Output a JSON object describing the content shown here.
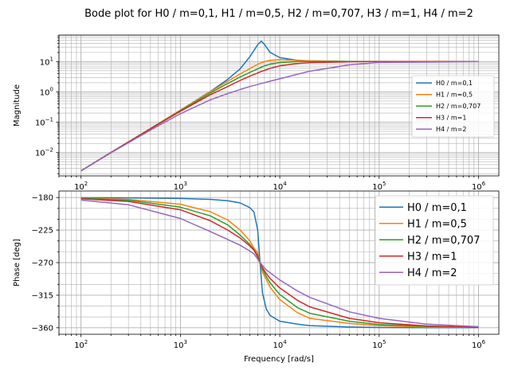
{
  "title": "Bode plot for H0 / m=0,1, H1 / m=0,5, H2 / m=0,707, H3 / m=1, H4 / m=2",
  "colors": {
    "series": [
      "#1f77b4",
      "#ff7f0e",
      "#2ca02c",
      "#d62728",
      "#9467bd"
    ],
    "grid": "#b0b0b0"
  },
  "chart_data": [
    {
      "type": "line",
      "title": "",
      "xlabel": "",
      "ylabel": "Magnitude",
      "xscale": "log",
      "yscale": "log",
      "xlim": [
        60,
        1600000
      ],
      "ylim": [
        0.0017,
        75
      ],
      "grid": "on (major and minor)",
      "legend_position": "center-right",
      "y_ticks": [
        {
          "value": 0.01,
          "base": "10",
          "exp": "−2"
        },
        {
          "value": 0.1,
          "base": "10",
          "exp": "−1"
        },
        {
          "value": 1,
          "base": "10",
          "exp": "0"
        },
        {
          "value": 10,
          "base": "10",
          "exp": "1"
        }
      ],
      "x_ticks": [
        {
          "value": 100,
          "base": "10",
          "exp": "2"
        },
        {
          "value": 1000,
          "base": "10",
          "exp": "3"
        },
        {
          "value": 10000,
          "base": "10",
          "exp": "4"
        },
        {
          "value": 100000,
          "base": "10",
          "exp": "5"
        },
        {
          "value": 1000000,
          "base": "10",
          "exp": "6"
        }
      ],
      "x": [
        100,
        200,
        500,
        1000,
        2000,
        3000,
        4000,
        5000,
        6000,
        6500,
        7000,
        8000,
        10000,
        15000,
        20000,
        50000,
        100000,
        1000000
      ],
      "series": [
        {
          "name": "H0 / m=0,1",
          "values": [
            0.0025,
            0.01,
            0.062,
            0.25,
            1.03,
            2.6,
            5.8,
            14.5,
            36,
            47,
            37,
            20,
            13.5,
            11,
            10.5,
            10.1,
            10,
            10
          ]
        },
        {
          "name": "H1 / m=0,5",
          "values": [
            0.0025,
            0.01,
            0.062,
            0.25,
            1.0,
            2.25,
            3.9,
            5.9,
            8.1,
            9.1,
            9.9,
            10.9,
            11.5,
            11.0,
            10.6,
            10.1,
            10,
            10
          ]
        },
        {
          "name": "H2 / m=0,707",
          "values": [
            0.0025,
            0.01,
            0.061,
            0.24,
            0.91,
            1.9,
            3.1,
            4.4,
            5.8,
            6.5,
            7.2,
            8.2,
            9.3,
            10.0,
            10.1,
            10.0,
            10,
            10
          ]
        },
        {
          "name": "H3 / m=1",
          "values": [
            0.0025,
            0.01,
            0.06,
            0.23,
            0.8,
            1.5,
            2.4,
            3.3,
            4.2,
            4.7,
            5.1,
            6.0,
            7.2,
            8.6,
            9.2,
            9.9,
            10,
            10
          ]
        },
        {
          "name": "H4 / m=2",
          "values": [
            0.0025,
            0.0098,
            0.055,
            0.19,
            0.55,
            0.88,
            1.2,
            1.5,
            1.75,
            1.9,
            2.0,
            2.25,
            2.7,
            3.8,
            4.8,
            7.8,
            9.4,
            10
          ]
        }
      ]
    },
    {
      "type": "line",
      "title": "",
      "xlabel": "Frequency [rad/s]",
      "ylabel": "Phase [deg]",
      "xscale": "log",
      "yscale": "linear",
      "xlim": [
        60,
        1600000
      ],
      "ylim": [
        -369,
        -171
      ],
      "grid": "on (major and minor)",
      "legend_position": "upper-right",
      "y_ticks": [
        {
          "value": -180,
          "label": "−180"
        },
        {
          "value": -225,
          "label": "−225"
        },
        {
          "value": -270,
          "label": "−270"
        },
        {
          "value": -315,
          "label": "−315"
        },
        {
          "value": -360,
          "label": "−360"
        }
      ],
      "x_ticks": [
        {
          "value": 100,
          "base": "10",
          "exp": "2"
        },
        {
          "value": 1000,
          "base": "10",
          "exp": "3"
        },
        {
          "value": 10000,
          "base": "10",
          "exp": "4"
        },
        {
          "value": 100000,
          "base": "10",
          "exp": "5"
        },
        {
          "value": 1000000,
          "base": "10",
          "exp": "6"
        }
      ],
      "x": [
        100,
        300,
        1000,
        2000,
        3000,
        4000,
        5000,
        5500,
        6000,
        6325,
        6700,
        7300,
        8000,
        10000,
        15000,
        20000,
        50000,
        100000,
        300000,
        1000000
      ],
      "series": [
        {
          "name": "H0 / m=0,1",
          "values": [
            -180.2,
            -180.5,
            -181.3,
            -182.6,
            -184.5,
            -187.5,
            -194,
            -200,
            -225,
            -270,
            -312,
            -334,
            -343,
            -351,
            -355,
            -357,
            -359,
            -359.6,
            -359.9,
            -360
          ]
        },
        {
          "name": "H1 / m=0,5",
          "values": [
            -180.9,
            -182.7,
            -189.3,
            -199.6,
            -211.2,
            -225,
            -240,
            -250,
            -256,
            -270,
            -283,
            -293,
            -304,
            -321,
            -339,
            -347,
            -354,
            -357,
            -359,
            -359.6
          ]
        },
        {
          "name": "H2 / m=0,707",
          "values": [
            -181.3,
            -183.8,
            -193.3,
            -205.3,
            -218,
            -232,
            -245,
            -252,
            -260,
            -270,
            -279,
            -289,
            -298,
            -314,
            -332,
            -340,
            -351,
            -355.5,
            -358,
            -359.5
          ]
        },
        {
          "name": "H3 / m=1",
          "values": [
            -181.8,
            -185.4,
            -197,
            -212,
            -225,
            -236,
            -247,
            -253,
            -262,
            -270,
            -277,
            -285,
            -292,
            -305,
            -322,
            -331,
            -347,
            -353,
            -357.5,
            -359.3
          ]
        },
        {
          "name": "H4 / m=2",
          "values": [
            -183.5,
            -190,
            -209,
            -227,
            -238,
            -246,
            -254,
            -258,
            -265,
            -270,
            -274,
            -280,
            -284,
            -294,
            -309,
            -318,
            -338,
            -347,
            -355,
            -358.6
          ]
        }
      ]
    }
  ]
}
